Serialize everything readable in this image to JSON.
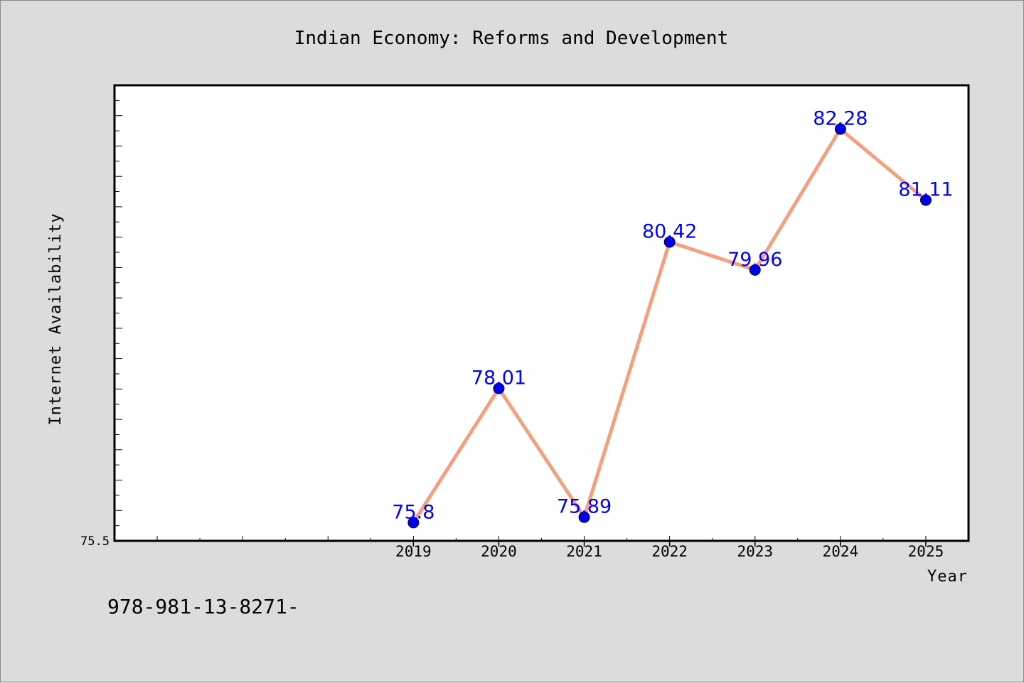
{
  "colors": {
    "line": "#f4a07c",
    "marker": "#0000ee",
    "label": "#0000ff",
    "background": "#dcdcdc",
    "plot_background": "#ffffff"
  },
  "footnote": "978-981-13-8271-",
  "chart_data": {
    "type": "line",
    "title": "Indian Economy: Reforms and Development",
    "xlabel": "Year",
    "ylabel": "Internet Availability",
    "categories": [
      "2019",
      "2020",
      "2021",
      "2022",
      "2023",
      "2024",
      "2025"
    ],
    "x_range": [
      2015.5,
      2025.5
    ],
    "ylim": [
      75.5,
      83.0
    ],
    "y_min_label": "75.5",
    "series": [
      {
        "values": [
          75.8,
          78.01,
          75.89,
          80.42,
          79.96,
          82.28,
          81.11
        ],
        "labels": [
          "75.8",
          "78.01",
          "75.89",
          "80.42",
          "79.96",
          "82.28",
          "81.11"
        ]
      }
    ],
    "grid": false,
    "legend": "none"
  }
}
